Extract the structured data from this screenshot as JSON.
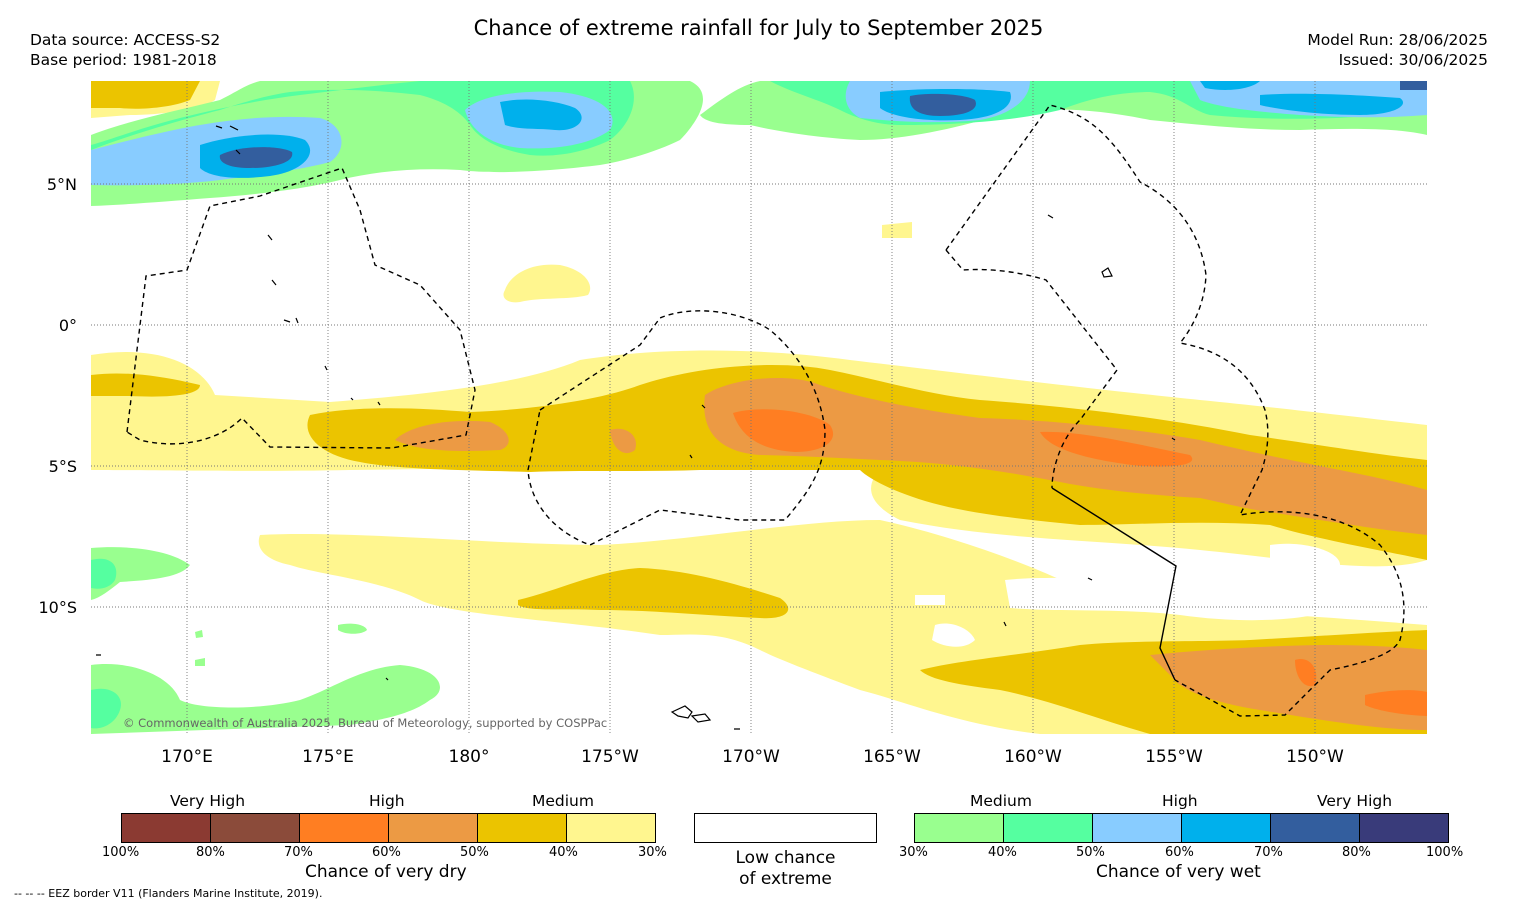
{
  "title": "Chance of extreme rainfall for July to September 2025",
  "data_source": "Data source: ACCESS-S2",
  "base_period": "Base period: 1981-2018",
  "model_run": "Model Run: 28/06/2025",
  "issued": "Issued: 30/06/2025",
  "lat_labels": [
    "5°N",
    "0°",
    "5°S",
    "10°S"
  ],
  "lon_labels": [
    "170°E",
    "175°E",
    "180°",
    "175°W",
    "170°W",
    "165°W",
    "160°W",
    "155°W",
    "150°W"
  ],
  "copyright": "© Commonwealth of Australia 2025, Bureau of Meteorology, supported by COSPPac",
  "footnote": "-- -- -- EEZ border V11 (Flanders Marine Institute, 2019).",
  "dry_legend": {
    "categories": [
      "Very High",
      "High",
      "Medium"
    ],
    "ticks": [
      "100%",
      "80%",
      "70%",
      "60%",
      "50%",
      "40%",
      "30%"
    ],
    "colors": [
      "#8B3A32",
      "#8B4B3A",
      "#FF7E22",
      "#EC9A44",
      "#EBC400",
      "#FFF68F"
    ],
    "title": "Chance of very dry"
  },
  "low_legend": {
    "line1": "Low chance",
    "line2": "of extreme",
    "color": "#ffffff"
  },
  "wet_legend": {
    "categories": [
      "Medium",
      "High",
      "Very High"
    ],
    "ticks": [
      "30%",
      "40%",
      "50%",
      "60%",
      "70%",
      "80%",
      "100%"
    ],
    "colors": [
      "#99FF8F",
      "#55FFA0",
      "#88CCFF",
      "#00B0EC",
      "#335E9E",
      "#393B7A"
    ],
    "title": "Chance of very wet"
  }
}
